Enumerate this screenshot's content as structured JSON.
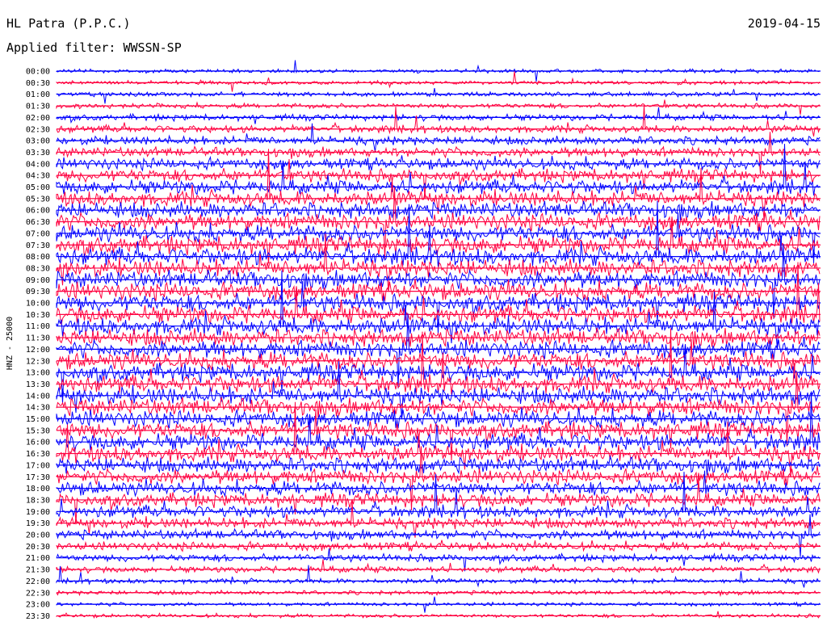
{
  "header": {
    "station": "HL Patra (P.P.C.)",
    "filter": "Applied filter: WWSSN-SP",
    "date": "2019-04-15"
  },
  "chart_data": {
    "type": "line",
    "title": "HL Patra (P.P.C.)",
    "date": "2019-04-15",
    "filter": "WWSSN-SP",
    "ylabel": "HNZ - 25000",
    "xlabel": "",
    "row_labels": [
      "00:00",
      "00:30",
      "01:00",
      "01:30",
      "02:00",
      "02:30",
      "03:00",
      "03:30",
      "04:00",
      "04:30",
      "05:00",
      "05:30",
      "06:00",
      "06:30",
      "07:00",
      "07:30",
      "08:00",
      "08:30",
      "09:00",
      "09:30",
      "10:00",
      "10:30",
      "11:00",
      "11:30",
      "12:00",
      "12:30",
      "13:00",
      "13:30",
      "14:00",
      "14:30",
      "15:00",
      "15:30",
      "16:00",
      "16:30",
      "17:00",
      "17:30",
      "18:00",
      "18:30",
      "19:00",
      "19:30",
      "20:00",
      "20:30",
      "21:00",
      "21:30",
      "22:00",
      "22:30",
      "23:00",
      "23:30"
    ],
    "row_colors": [
      "#0000ff",
      "#ff0040"
    ],
    "relative_amplitude": [
      0.6,
      0.6,
      0.7,
      0.8,
      1.0,
      1.2,
      1.4,
      1.6,
      1.9,
      2.1,
      2.3,
      2.5,
      2.6,
      2.7,
      2.7,
      2.8,
      2.8,
      2.8,
      2.8,
      2.8,
      2.8,
      2.8,
      2.8,
      2.8,
      2.8,
      2.8,
      2.8,
      2.8,
      2.8,
      2.8,
      2.7,
      2.7,
      2.7,
      2.6,
      2.5,
      2.4,
      2.3,
      2.2,
      2.0,
      1.8,
      1.6,
      1.4,
      1.2,
      1.0,
      0.8,
      0.7,
      0.6,
      0.6
    ],
    "grid": false
  }
}
